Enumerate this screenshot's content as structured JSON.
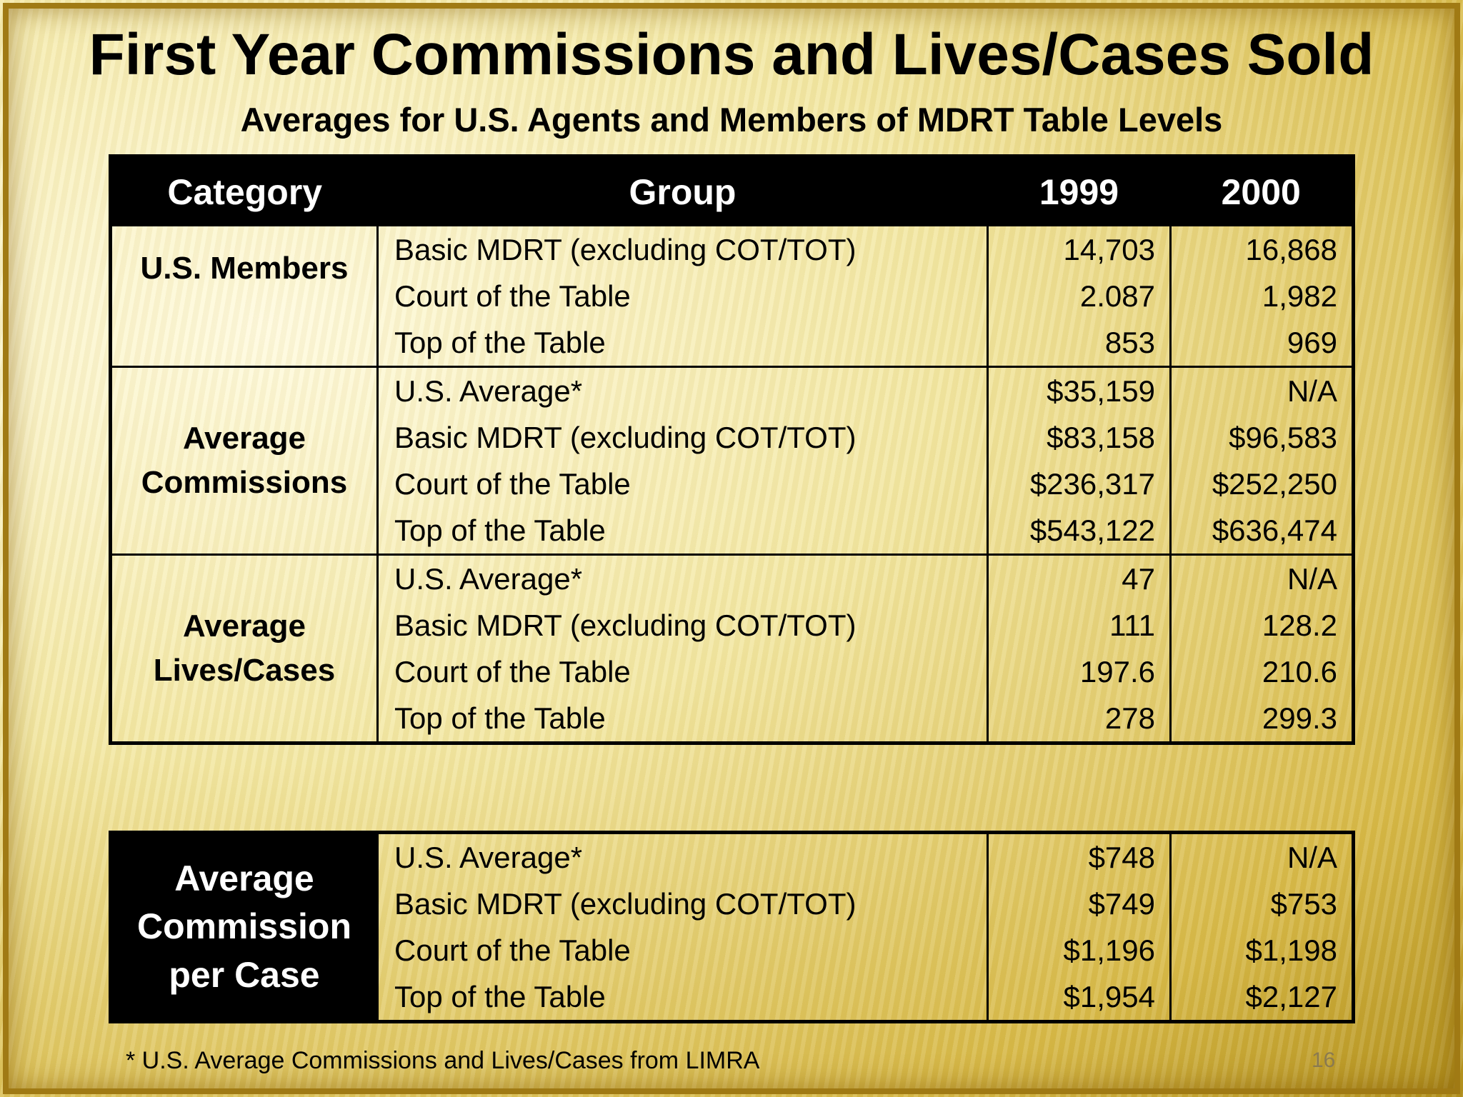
{
  "title": "First Year Commissions and Lives/Cases Sold",
  "subtitle": "Averages for U.S. Agents and Members of MDRT Table Levels",
  "headers": {
    "category": "Category",
    "group": "Group",
    "year1": "1999",
    "year2": "2000"
  },
  "sections": [
    {
      "category": "U.S. Members",
      "rows": [
        {
          "group": "Basic MDRT (excluding COT/TOT)",
          "y1999": "14,703",
          "y2000": "16,868"
        },
        {
          "group": "Court of the Table",
          "y1999": "2.087",
          "y2000": "1,982"
        },
        {
          "group": "Top of the Table",
          "y1999": "853",
          "y2000": "969"
        }
      ]
    },
    {
      "category_line1": "Average",
      "category_line2": "Commissions",
      "rows": [
        {
          "group": "U.S. Average*",
          "y1999": "$35,159",
          "y2000": "N/A"
        },
        {
          "group": "Basic MDRT (excluding COT/TOT)",
          "y1999": "$83,158",
          "y2000": "$96,583"
        },
        {
          "group": "Court of the Table",
          "y1999": "$236,317",
          "y2000": "$252,250"
        },
        {
          "group": "Top of the Table",
          "y1999": "$543,122",
          "y2000": "$636,474"
        }
      ]
    },
    {
      "category_line1": "Average",
      "category_line2": "Lives/Cases",
      "rows": [
        {
          "group": "U.S. Average*",
          "y1999": "47",
          "y2000": "N/A"
        },
        {
          "group": "Basic MDRT (excluding COT/TOT)",
          "y1999": "111",
          "y2000": "128.2"
        },
        {
          "group": "Court of the Table",
          "y1999": "197.6",
          "y2000": "210.6"
        },
        {
          "group": "Top of the Table",
          "y1999": "278",
          "y2000": "299.3"
        }
      ]
    }
  ],
  "lower_section": {
    "category_line1": "Average",
    "category_line2": "Commission",
    "category_line3": "per Case",
    "rows": [
      {
        "group": "U.S. Average*",
        "y1999": "$748",
        "y2000": "N/A"
      },
      {
        "group": "Basic MDRT (excluding COT/TOT)",
        "y1999": "$749",
        "y2000": "$753"
      },
      {
        "group": "Court of the Table",
        "y1999": "$1,196",
        "y2000": "$1,198"
      },
      {
        "group": "Top of the Table",
        "y1999": "$1,954",
        "y2000": "$2,127"
      }
    ]
  },
  "footnote": "* U.S. Average Commissions and Lives/Cases from LIMRA",
  "page_number": "16",
  "colors": {
    "header_bg": "#000000",
    "header_text": "#ffffff",
    "background": "#f3e8a4"
  }
}
